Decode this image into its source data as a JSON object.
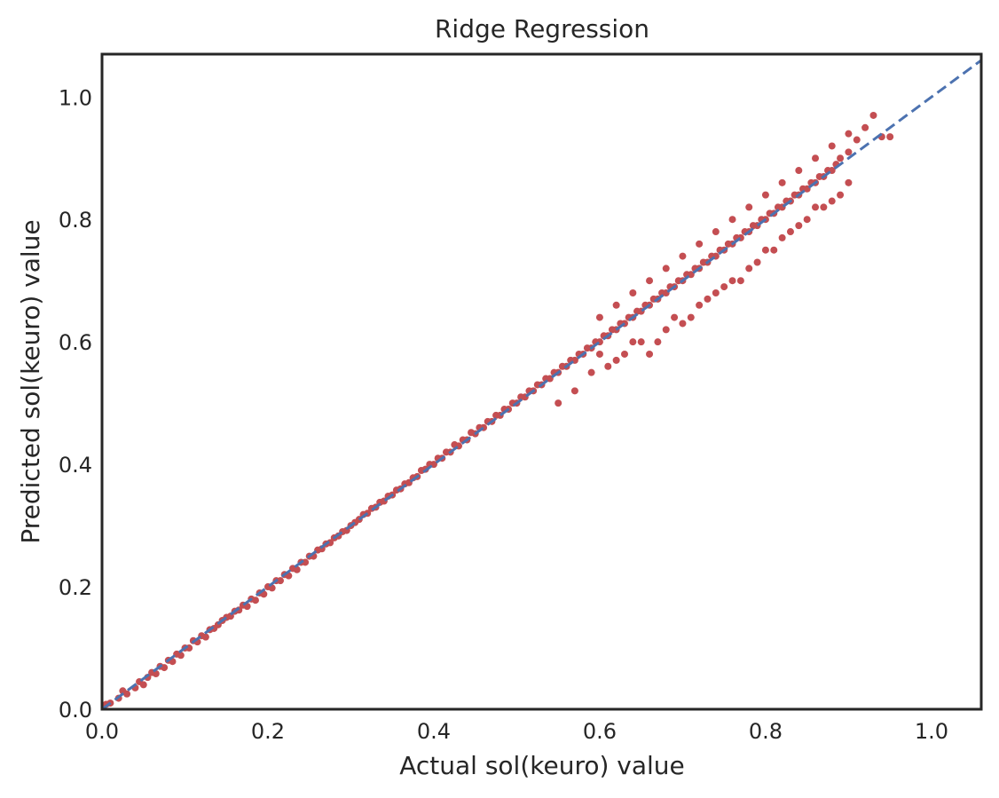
{
  "chart_data": {
    "type": "scatter",
    "title": "Ridge Regression",
    "xlabel": "Actual sol(keuro) value",
    "ylabel": "Predicted sol(keuro) value",
    "xlim": [
      0.0,
      1.06
    ],
    "ylim": [
      0.0,
      1.07
    ],
    "xticks": [
      "0.0",
      "0.2",
      "0.4",
      "0.6",
      "0.8",
      "1.0"
    ],
    "yticks": [
      "0.0",
      "0.2",
      "0.4",
      "0.6",
      "0.8",
      "1.0"
    ],
    "grid": false,
    "legend": "none",
    "reference_line": {
      "style": "dashed",
      "color": "#4c72b0",
      "from": [
        0.0,
        0.0
      ],
      "to": [
        1.06,
        1.06
      ]
    },
    "series": [
      {
        "color": "#c44e52",
        "points": [
          [
            0.005,
            0.008
          ],
          [
            0.01,
            0.01
          ],
          [
            0.02,
            0.018
          ],
          [
            0.025,
            0.03
          ],
          [
            0.03,
            0.025
          ],
          [
            0.04,
            0.035
          ],
          [
            0.045,
            0.045
          ],
          [
            0.05,
            0.04
          ],
          [
            0.055,
            0.052
          ],
          [
            0.06,
            0.06
          ],
          [
            0.065,
            0.058
          ],
          [
            0.07,
            0.07
          ],
          [
            0.075,
            0.068
          ],
          [
            0.08,
            0.08
          ],
          [
            0.085,
            0.078
          ],
          [
            0.09,
            0.09
          ],
          [
            0.095,
            0.088
          ],
          [
            0.1,
            0.1
          ],
          [
            0.105,
            0.1
          ],
          [
            0.11,
            0.112
          ],
          [
            0.115,
            0.11
          ],
          [
            0.12,
            0.12
          ],
          [
            0.125,
            0.118
          ],
          [
            0.13,
            0.13
          ],
          [
            0.135,
            0.132
          ],
          [
            0.14,
            0.138
          ],
          [
            0.145,
            0.145
          ],
          [
            0.15,
            0.15
          ],
          [
            0.155,
            0.152
          ],
          [
            0.16,
            0.16
          ],
          [
            0.165,
            0.162
          ],
          [
            0.17,
            0.17
          ],
          [
            0.175,
            0.168
          ],
          [
            0.18,
            0.18
          ],
          [
            0.185,
            0.178
          ],
          [
            0.19,
            0.19
          ],
          [
            0.195,
            0.188
          ],
          [
            0.2,
            0.2
          ],
          [
            0.205,
            0.198
          ],
          [
            0.21,
            0.21
          ],
          [
            0.215,
            0.21
          ],
          [
            0.22,
            0.22
          ],
          [
            0.225,
            0.218
          ],
          [
            0.23,
            0.23
          ],
          [
            0.235,
            0.228
          ],
          [
            0.24,
            0.24
          ],
          [
            0.245,
            0.24
          ],
          [
            0.25,
            0.25
          ],
          [
            0.255,
            0.25
          ],
          [
            0.26,
            0.26
          ],
          [
            0.265,
            0.262
          ],
          [
            0.27,
            0.27
          ],
          [
            0.275,
            0.272
          ],
          [
            0.28,
            0.28
          ],
          [
            0.285,
            0.283
          ],
          [
            0.29,
            0.29
          ],
          [
            0.295,
            0.292
          ],
          [
            0.3,
            0.3
          ],
          [
            0.305,
            0.305
          ],
          [
            0.31,
            0.31
          ],
          [
            0.315,
            0.318
          ],
          [
            0.32,
            0.32
          ],
          [
            0.325,
            0.328
          ],
          [
            0.33,
            0.33
          ],
          [
            0.335,
            0.338
          ],
          [
            0.34,
            0.34
          ],
          [
            0.345,
            0.348
          ],
          [
            0.35,
            0.35
          ],
          [
            0.355,
            0.358
          ],
          [
            0.36,
            0.36
          ],
          [
            0.365,
            0.368
          ],
          [
            0.37,
            0.37
          ],
          [
            0.375,
            0.378
          ],
          [
            0.38,
            0.38
          ],
          [
            0.385,
            0.39
          ],
          [
            0.39,
            0.392
          ],
          [
            0.395,
            0.4
          ],
          [
            0.4,
            0.4
          ],
          [
            0.405,
            0.41
          ],
          [
            0.41,
            0.41
          ],
          [
            0.415,
            0.42
          ],
          [
            0.42,
            0.42
          ],
          [
            0.425,
            0.432
          ],
          [
            0.43,
            0.43
          ],
          [
            0.435,
            0.44
          ],
          [
            0.44,
            0.44
          ],
          [
            0.445,
            0.452
          ],
          [
            0.45,
            0.45
          ],
          [
            0.455,
            0.46
          ],
          [
            0.46,
            0.46
          ],
          [
            0.465,
            0.47
          ],
          [
            0.47,
            0.47
          ],
          [
            0.475,
            0.48
          ],
          [
            0.48,
            0.48
          ],
          [
            0.485,
            0.49
          ],
          [
            0.49,
            0.49
          ],
          [
            0.495,
            0.5
          ],
          [
            0.5,
            0.5
          ],
          [
            0.505,
            0.51
          ],
          [
            0.51,
            0.51
          ],
          [
            0.515,
            0.52
          ],
          [
            0.52,
            0.52
          ],
          [
            0.525,
            0.53
          ],
          [
            0.53,
            0.53
          ],
          [
            0.535,
            0.54
          ],
          [
            0.54,
            0.54
          ],
          [
            0.545,
            0.55
          ],
          [
            0.55,
            0.55
          ],
          [
            0.555,
            0.56
          ],
          [
            0.56,
            0.56
          ],
          [
            0.565,
            0.57
          ],
          [
            0.57,
            0.57
          ],
          [
            0.575,
            0.58
          ],
          [
            0.58,
            0.58
          ],
          [
            0.585,
            0.59
          ],
          [
            0.59,
            0.59
          ],
          [
            0.595,
            0.6
          ],
          [
            0.6,
            0.6
          ],
          [
            0.605,
            0.61
          ],
          [
            0.61,
            0.61
          ],
          [
            0.615,
            0.62
          ],
          [
            0.62,
            0.62
          ],
          [
            0.625,
            0.63
          ],
          [
            0.63,
            0.63
          ],
          [
            0.635,
            0.64
          ],
          [
            0.64,
            0.64
          ],
          [
            0.645,
            0.65
          ],
          [
            0.65,
            0.65
          ],
          [
            0.655,
            0.66
          ],
          [
            0.66,
            0.66
          ],
          [
            0.665,
            0.67
          ],
          [
            0.67,
            0.67
          ],
          [
            0.675,
            0.68
          ],
          [
            0.68,
            0.68
          ],
          [
            0.685,
            0.69
          ],
          [
            0.69,
            0.69
          ],
          [
            0.695,
            0.7
          ],
          [
            0.7,
            0.7
          ],
          [
            0.705,
            0.71
          ],
          [
            0.71,
            0.71
          ],
          [
            0.715,
            0.72
          ],
          [
            0.72,
            0.72
          ],
          [
            0.725,
            0.73
          ],
          [
            0.73,
            0.73
          ],
          [
            0.735,
            0.74
          ],
          [
            0.74,
            0.74
          ],
          [
            0.745,
            0.75
          ],
          [
            0.75,
            0.75
          ],
          [
            0.755,
            0.76
          ],
          [
            0.76,
            0.76
          ],
          [
            0.765,
            0.77
          ],
          [
            0.77,
            0.77
          ],
          [
            0.775,
            0.78
          ],
          [
            0.78,
            0.78
          ],
          [
            0.785,
            0.79
          ],
          [
            0.79,
            0.79
          ],
          [
            0.795,
            0.8
          ],
          [
            0.8,
            0.8
          ],
          [
            0.805,
            0.81
          ],
          [
            0.81,
            0.81
          ],
          [
            0.815,
            0.82
          ],
          [
            0.82,
            0.82
          ],
          [
            0.825,
            0.83
          ],
          [
            0.83,
            0.83
          ],
          [
            0.835,
            0.84
          ],
          [
            0.84,
            0.84
          ],
          [
            0.845,
            0.85
          ],
          [
            0.85,
            0.85
          ],
          [
            0.855,
            0.86
          ],
          [
            0.86,
            0.86
          ],
          [
            0.865,
            0.87
          ],
          [
            0.87,
            0.87
          ],
          [
            0.875,
            0.88
          ],
          [
            0.88,
            0.88
          ],
          [
            0.885,
            0.89
          ],
          [
            0.89,
            0.9
          ],
          [
            0.9,
            0.91
          ],
          [
            0.91,
            0.93
          ],
          [
            0.92,
            0.95
          ],
          [
            0.93,
            0.97
          ],
          [
            0.94,
            0.935
          ],
          [
            0.95,
            0.935
          ],
          [
            0.6,
            0.58
          ],
          [
            0.62,
            0.57
          ],
          [
            0.64,
            0.6
          ],
          [
            0.66,
            0.58
          ],
          [
            0.68,
            0.62
          ],
          [
            0.7,
            0.63
          ],
          [
            0.72,
            0.66
          ],
          [
            0.74,
            0.68
          ],
          [
            0.76,
            0.7
          ],
          [
            0.78,
            0.72
          ],
          [
            0.8,
            0.75
          ],
          [
            0.82,
            0.77
          ],
          [
            0.84,
            0.79
          ],
          [
            0.86,
            0.82
          ],
          [
            0.88,
            0.83
          ],
          [
            0.9,
            0.86
          ],
          [
            0.55,
            0.5
          ],
          [
            0.57,
            0.52
          ],
          [
            0.59,
            0.55
          ],
          [
            0.61,
            0.56
          ],
          [
            0.63,
            0.58
          ],
          [
            0.65,
            0.6
          ],
          [
            0.67,
            0.6
          ],
          [
            0.69,
            0.64
          ],
          [
            0.71,
            0.64
          ],
          [
            0.73,
            0.67
          ],
          [
            0.75,
            0.69
          ],
          [
            0.77,
            0.7
          ],
          [
            0.79,
            0.73
          ],
          [
            0.81,
            0.75
          ],
          [
            0.83,
            0.78
          ],
          [
            0.85,
            0.8
          ],
          [
            0.87,
            0.82
          ],
          [
            0.89,
            0.84
          ],
          [
            0.6,
            0.64
          ],
          [
            0.62,
            0.66
          ],
          [
            0.64,
            0.68
          ],
          [
            0.66,
            0.7
          ],
          [
            0.68,
            0.72
          ],
          [
            0.7,
            0.74
          ],
          [
            0.72,
            0.76
          ],
          [
            0.74,
            0.78
          ],
          [
            0.76,
            0.8
          ],
          [
            0.78,
            0.82
          ],
          [
            0.8,
            0.84
          ],
          [
            0.82,
            0.86
          ],
          [
            0.84,
            0.88
          ],
          [
            0.86,
            0.9
          ],
          [
            0.88,
            0.92
          ],
          [
            0.9,
            0.94
          ]
        ]
      }
    ]
  }
}
